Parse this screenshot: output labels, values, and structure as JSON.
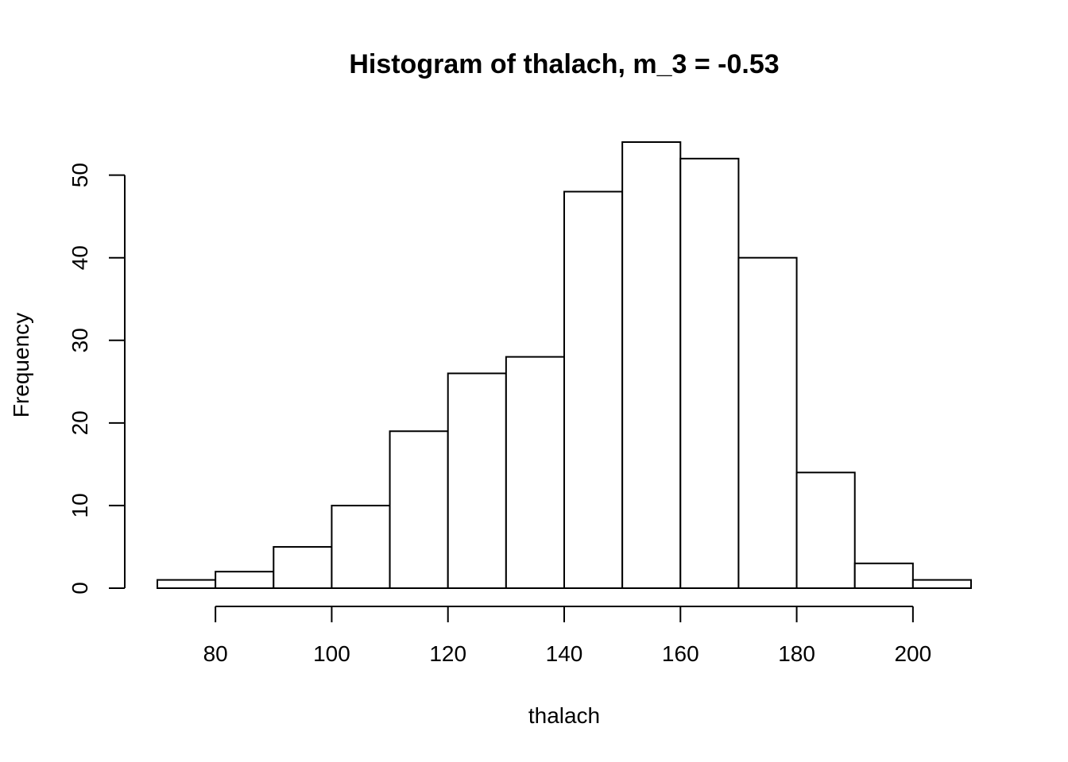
{
  "chart_data": {
    "type": "bar",
    "subtype": "histogram",
    "title": "Histogram of thalach, m_3 = -0.53",
    "xlabel": "thalach",
    "ylabel": "Frequency",
    "bin_edges": [
      70,
      80,
      90,
      100,
      110,
      120,
      130,
      140,
      150,
      160,
      170,
      180,
      190,
      200,
      210
    ],
    "values": [
      1,
      2,
      5,
      10,
      19,
      26,
      28,
      48,
      54,
      52,
      40,
      14,
      3,
      1
    ],
    "xlim": [
      70,
      210
    ],
    "ylim": [
      0,
      54
    ],
    "x_ticks": [
      80,
      100,
      120,
      140,
      160,
      180,
      200
    ],
    "x_tick_labels": [
      "80",
      "100",
      "120",
      "140",
      "160",
      "180",
      "200"
    ],
    "y_ticks": [
      0,
      10,
      20,
      30,
      40,
      50
    ],
    "y_tick_labels": [
      "0",
      "10",
      "20",
      "30",
      "40",
      "50"
    ],
    "grid": false,
    "legend": "none",
    "bar_fill": "#ffffff",
    "bar_stroke": "#000000"
  }
}
